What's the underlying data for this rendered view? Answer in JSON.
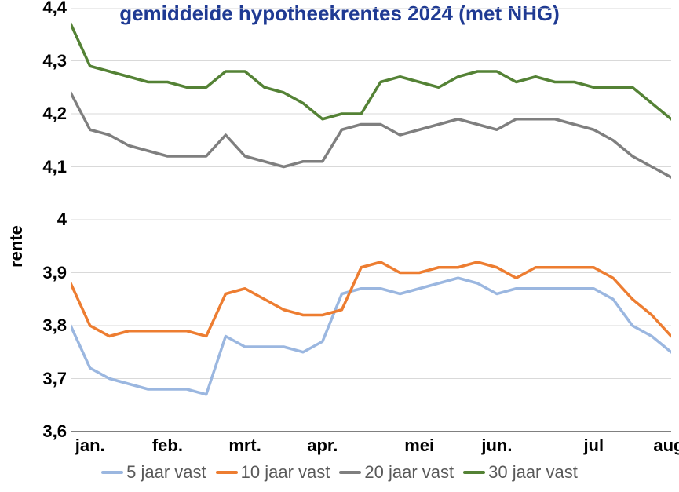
{
  "chart": {
    "type": "line",
    "title": "gemiddelde hypotheekrentes 2024 (met NHG)",
    "title_color": "#1f3a93",
    "title_fontsize": 26,
    "ylabel": "rente",
    "ylabel_fontsize": 22,
    "tick_fontsize": 22,
    "legend_fontsize": 22,
    "background_color": "#ffffff",
    "axis_color": "#808080",
    "grid_color": "#d9d9d9",
    "ylim": [
      3.6,
      4.4
    ],
    "ytick_step": 0.1,
    "ytick_labels": [
      "3,6",
      "3,7",
      "3,8",
      "3,9",
      "4",
      "4,1",
      "4,2",
      "4,3",
      "4,4"
    ],
    "x_count": 32,
    "xticks": {
      "positions": [
        1,
        5,
        9,
        13,
        18,
        22,
        27,
        31
      ],
      "labels": [
        "jan.",
        "feb.",
        "mrt.",
        "apr.",
        "mei",
        "jun.",
        "jul",
        "aug."
      ]
    },
    "line_width": 3.5,
    "series": [
      {
        "name": "5 jaar vast",
        "color": "#9bb7e0",
        "values": [
          3.8,
          3.72,
          3.7,
          3.69,
          3.68,
          3.68,
          3.68,
          3.67,
          3.78,
          3.76,
          3.76,
          3.76,
          3.75,
          3.77,
          3.86,
          3.87,
          3.87,
          3.86,
          3.87,
          3.88,
          3.89,
          3.88,
          3.86,
          3.87,
          3.87,
          3.87,
          3.87,
          3.87,
          3.85,
          3.8,
          3.78,
          3.75
        ]
      },
      {
        "name": "10 jaar vast",
        "color": "#ed7d31",
        "values": [
          3.88,
          3.8,
          3.78,
          3.79,
          3.79,
          3.79,
          3.79,
          3.78,
          3.86,
          3.87,
          3.85,
          3.83,
          3.82,
          3.82,
          3.83,
          3.91,
          3.92,
          3.9,
          3.9,
          3.91,
          3.91,
          3.92,
          3.91,
          3.89,
          3.91,
          3.91,
          3.91,
          3.91,
          3.89,
          3.85,
          3.82,
          3.78
        ]
      },
      {
        "name": "20 jaar vast",
        "color": "#7f7f7f",
        "values": [
          4.24,
          4.17,
          4.16,
          4.14,
          4.13,
          4.12,
          4.12,
          4.12,
          4.16,
          4.12,
          4.11,
          4.1,
          4.11,
          4.11,
          4.17,
          4.18,
          4.18,
          4.16,
          4.17,
          4.18,
          4.19,
          4.18,
          4.17,
          4.19,
          4.19,
          4.19,
          4.18,
          4.17,
          4.15,
          4.12,
          4.1,
          4.08
        ]
      },
      {
        "name": "30 jaar vast",
        "color": "#548235",
        "values": [
          4.37,
          4.29,
          4.28,
          4.27,
          4.26,
          4.26,
          4.25,
          4.25,
          4.28,
          4.28,
          4.25,
          4.24,
          4.22,
          4.19,
          4.2,
          4.2,
          4.26,
          4.27,
          4.26,
          4.25,
          4.27,
          4.28,
          4.28,
          4.26,
          4.27,
          4.26,
          4.26,
          4.25,
          4.25,
          4.25,
          4.22,
          4.19
        ]
      }
    ],
    "legend": {
      "position": "bottom",
      "items": [
        "5 jaar vast",
        "10 jaar vast",
        "20 jaar vast",
        "30 jaar vast"
      ]
    }
  }
}
